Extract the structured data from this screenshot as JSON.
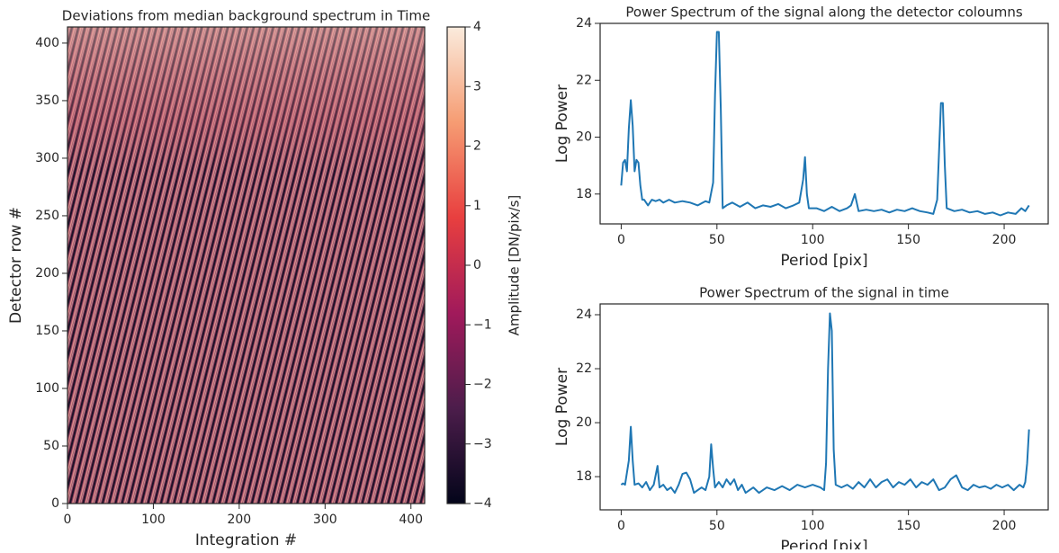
{
  "chart_data": [
    {
      "type": "heatmap",
      "title": "Deviations from median background spectrum in Time",
      "xlabel": "Integration #",
      "ylabel": "Detector row #",
      "xlim": [
        0,
        416
      ],
      "ylim": [
        0,
        414
      ],
      "xticks": [
        0,
        100,
        200,
        300,
        400
      ],
      "yticks": [
        0,
        50,
        100,
        150,
        200,
        250,
        300,
        350,
        400
      ],
      "colorbar_label": "Amplitude [DN/pix/s]",
      "clim": [
        -4,
        4
      ],
      "cticks": [
        {
          "value": -4,
          "label": "−4"
        },
        {
          "value": -3,
          "label": "−3"
        },
        {
          "value": -2,
          "label": "−2"
        },
        {
          "value": -1,
          "label": "−1"
        },
        0,
        1,
        2,
        3,
        4
      ]
    },
    {
      "type": "line",
      "title": "Power Spectrum of the signal along the detector coloumns",
      "xlabel": "Period [pix]",
      "ylabel": "Log Power",
      "color": "#1f77b4",
      "xlim": [
        -11,
        223
      ],
      "ylim": [
        16.95,
        24.0
      ],
      "xticks": [
        0,
        50,
        100,
        150,
        200
      ],
      "yticks": [
        18,
        20,
        22,
        24
      ],
      "x": [
        0,
        1,
        2,
        3,
        4,
        5,
        6,
        7,
        8,
        9,
        10,
        11,
        12,
        14,
        16,
        18,
        20,
        22,
        25,
        28,
        32,
        36,
        40,
        44,
        46,
        48,
        49,
        50,
        51,
        52,
        53,
        55,
        58,
        62,
        66,
        70,
        74,
        78,
        82,
        86,
        90,
        93,
        95,
        96,
        97,
        98,
        102,
        106,
        110,
        114,
        118,
        120,
        122,
        124,
        128,
        132,
        136,
        140,
        144,
        148,
        152,
        156,
        160,
        163,
        165,
        166,
        167,
        168,
        169,
        170,
        174,
        178,
        182,
        186,
        190,
        194,
        198,
        202,
        206,
        209,
        211,
        213
      ],
      "values": [
        18.3,
        19.1,
        19.2,
        18.8,
        20.3,
        21.3,
        20.4,
        18.8,
        19.2,
        19.1,
        18.3,
        17.8,
        17.8,
        17.6,
        17.8,
        17.75,
        17.8,
        17.7,
        17.8,
        17.7,
        17.75,
        17.7,
        17.6,
        17.75,
        17.7,
        18.4,
        21.5,
        23.7,
        23.7,
        21.0,
        17.5,
        17.6,
        17.7,
        17.55,
        17.7,
        17.5,
        17.6,
        17.55,
        17.65,
        17.5,
        17.6,
        17.7,
        18.5,
        19.3,
        18.0,
        17.5,
        17.5,
        17.4,
        17.55,
        17.4,
        17.5,
        17.6,
        18.0,
        17.4,
        17.45,
        17.4,
        17.45,
        17.35,
        17.45,
        17.4,
        17.5,
        17.4,
        17.35,
        17.3,
        17.8,
        19.5,
        21.2,
        21.2,
        19.0,
        17.5,
        17.4,
        17.45,
        17.35,
        17.4,
        17.3,
        17.35,
        17.25,
        17.35,
        17.3,
        17.5,
        17.4,
        17.6
      ]
    },
    {
      "type": "line",
      "title": "Power Spectrum of the signal in time",
      "xlabel": "Period [pix]",
      "ylabel": "Log Power",
      "color": "#1f77b4",
      "xlim": [
        -11,
        223
      ],
      "ylim": [
        16.77,
        24.4
      ],
      "xticks": [
        0,
        50,
        100,
        150,
        200
      ],
      "yticks": [
        18,
        20,
        22,
        24
      ],
      "x": [
        0,
        1,
        2,
        4,
        5,
        6,
        7,
        9,
        11,
        13,
        15,
        17,
        19,
        20,
        22,
        24,
        26,
        28,
        30,
        32,
        34,
        36,
        38,
        40,
        42,
        44,
        46,
        47,
        48,
        49,
        51,
        53,
        55,
        57,
        59,
        61,
        63,
        65,
        67,
        69,
        72,
        76,
        80,
        84,
        88,
        92,
        96,
        100,
        104,
        106,
        107,
        108,
        109,
        110,
        111,
        112,
        115,
        118,
        121,
        124,
        127,
        130,
        133,
        136,
        139,
        142,
        145,
        148,
        151,
        154,
        157,
        160,
        163,
        166,
        169,
        172,
        175,
        178,
        181,
        184,
        187,
        190,
        193,
        196,
        199,
        202,
        205,
        208,
        210,
        211,
        212,
        213
      ],
      "values": [
        17.7,
        17.75,
        17.7,
        18.6,
        19.85,
        18.6,
        17.7,
        17.75,
        17.6,
        17.8,
        17.5,
        17.7,
        18.4,
        17.6,
        17.7,
        17.5,
        17.6,
        17.4,
        17.7,
        18.1,
        18.15,
        17.9,
        17.4,
        17.5,
        17.6,
        17.5,
        18.0,
        19.2,
        18.3,
        17.6,
        17.8,
        17.6,
        17.9,
        17.7,
        17.9,
        17.5,
        17.7,
        17.4,
        17.5,
        17.6,
        17.4,
        17.6,
        17.5,
        17.65,
        17.5,
        17.7,
        17.6,
        17.7,
        17.6,
        17.5,
        18.5,
        22.0,
        24.05,
        23.4,
        19.0,
        17.7,
        17.6,
        17.7,
        17.55,
        17.8,
        17.6,
        17.9,
        17.6,
        17.8,
        17.9,
        17.6,
        17.8,
        17.7,
        17.9,
        17.6,
        17.8,
        17.7,
        17.9,
        17.5,
        17.6,
        17.9,
        18.05,
        17.6,
        17.5,
        17.7,
        17.6,
        17.65,
        17.55,
        17.7,
        17.6,
        17.7,
        17.5,
        17.7,
        17.6,
        17.8,
        18.5,
        19.75
      ]
    }
  ]
}
